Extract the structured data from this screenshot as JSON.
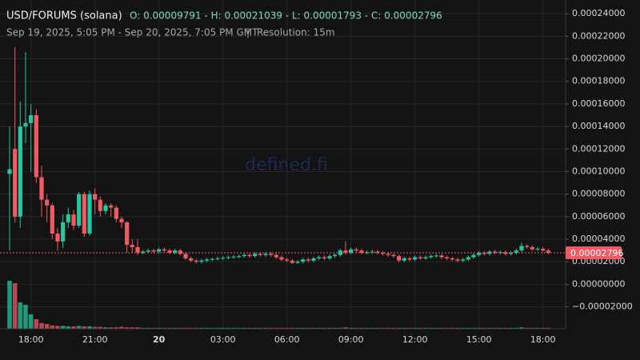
{
  "chart_data": {
    "type": "candlestick",
    "title": "USD/FORUMS (solana)",
    "subtitle": "O: 0.00009791 - H: 0.00021039 - L: 0.00001793 - C: 0.00002796",
    "range_label": "Sep 19, 2025, 5:05 PM - Sep 20, 2025, 7:05 PM GMT",
    "separator": "|",
    "resolution_label": "Resolution: 15m",
    "watermark": "defined.fi",
    "close_label": "0.00002796",
    "up_color": "#26c6a0",
    "down_color": "#f05a64",
    "grid": true,
    "ylim": [
      -3.95e-05,
      0.0002522
    ],
    "yticks": [
      {
        "value": -2e-05,
        "label": "−0.00002000"
      },
      {
        "value": 0,
        "label": "0.00000000"
      },
      {
        "value": 2e-05,
        "label": "0.00002000"
      },
      {
        "value": 4e-05,
        "label": "0.00004000"
      },
      {
        "value": 6e-05,
        "label": "0.00006000"
      },
      {
        "value": 8e-05,
        "label": "0.00008000"
      },
      {
        "value": 0.0001,
        "label": "0.00010000"
      },
      {
        "value": 0.00012,
        "label": "0.00012000"
      },
      {
        "value": 0.00014,
        "label": "0.00014000"
      },
      {
        "value": 0.00016,
        "label": "0.00016000"
      },
      {
        "value": 0.00018,
        "label": "0.00018000"
      },
      {
        "value": 0.0002,
        "label": "0.00020000"
      },
      {
        "value": 0.00022,
        "label": "0.00022000"
      },
      {
        "value": 0.00024,
        "label": "0.00024000"
      }
    ],
    "xticks": [
      "18:00",
      "21:00",
      "20",
      "03:00",
      "06:00",
      "09:00",
      "12:00",
      "15:00",
      "18:00"
    ],
    "open": [
      9.791e-05,
      0.00012,
      6e-05,
      0.00014,
      0.000143,
      0.00015,
      9.5e-05,
      7.5e-05,
      7e-05,
      4.5e-05,
      3.8e-05,
      5.5e-05,
      6.2e-05,
      5.2e-05,
      8e-05,
      4.5e-05,
      8e-05,
      7.5e-05,
      6.5e-05,
      7e-05,
      6.8e-05,
      5.8e-05,
      5.5e-05,
      3.5e-05,
      3.3e-05,
      2.8e-05,
      2.9e-05,
      3e-05,
      2.9e-05,
      3.1e-05,
      3e-05,
      2.8e-05,
      3e-05,
      2.7e-05,
      2.3e-05,
      2.1e-05,
      2e-05,
      2.1e-05,
      2.2e-05,
      2.25e-05,
      2.3e-05,
      2.35e-05,
      2.4e-05,
      2.45e-05,
      2.5e-05,
      2.6e-05,
      2.5e-05,
      2.7e-05,
      2.6e-05,
      2.7e-05,
      2.6e-05,
      2.4e-05,
      2.2e-05,
      2.1e-05,
      1.9e-05,
      2e-05,
      2.2e-05,
      2.1e-05,
      2.3e-05,
      2.4e-05,
      2.3e-05,
      2.5e-05,
      2.6e-05,
      3e-05,
      2.8e-05,
      3.1e-05,
      3e-05,
      2.8e-05,
      2.85e-05,
      2.9e-05,
      2.8e-05,
      2.7e-05,
      2.6e-05,
      2.5e-05,
      2.1e-05,
      2.3e-05,
      2.2e-05,
      2.4e-05,
      2.3e-05,
      2.4e-05,
      2.5e-05,
      2.55e-05,
      2.4e-05,
      2.3e-05,
      2.2e-05,
      2.1e-05,
      2.2e-05,
      2.4e-05,
      2.6e-05,
      2.8e-05,
      2.7e-05,
      2.9e-05,
      2.8e-05,
      2.85e-05,
      2.7e-05,
      2.8e-05,
      3e-05,
      3.4e-05,
      3.3e-05,
      3.1e-05,
      3.15e-05,
      3e-05
    ],
    "high": [
      0.00014,
      0.00021039,
      0.000162,
      0.000206,
      0.00016,
      0.000155,
      0.000105,
      8e-05,
      7.2e-05,
      5e-05,
      6.2e-05,
      6.8e-05,
      6.6e-05,
      8.2e-05,
      8.2e-05,
      8.3e-05,
      8.5e-05,
      7.8e-05,
      7.2e-05,
      7.2e-05,
      7e-05,
      6e-05,
      5.6e-05,
      4e-05,
      4e-05,
      3.05e-05,
      3.15e-05,
      3.15e-05,
      3.25e-05,
      3.25e-05,
      3.15e-05,
      3.15e-05,
      3.15e-05,
      2.85e-05,
      2.45e-05,
      2.25e-05,
      2.25e-05,
      2.35e-05,
      2.35e-05,
      2.45e-05,
      2.5e-05,
      2.55e-05,
      2.6e-05,
      2.65e-05,
      2.75e-05,
      2.75e-05,
      2.85e-05,
      2.85e-05,
      2.85e-05,
      2.85e-05,
      2.75e-05,
      2.55e-05,
      2.35e-05,
      2.25e-05,
      2.15e-05,
      2.35e-05,
      2.35e-05,
      2.45e-05,
      2.55e-05,
      2.55e-05,
      2.65e-05,
      2.75e-05,
      3.15e-05,
      3.8e-05,
      3.25e-05,
      3.25e-05,
      3.15e-05,
      3e-05,
      3.05e-05,
      3.05e-05,
      2.95e-05,
      2.85e-05,
      2.75e-05,
      2.65e-05,
      2.45e-05,
      2.45e-05,
      2.55e-05,
      2.55e-05,
      2.55e-05,
      2.65e-05,
      2.7e-05,
      2.7e-05,
      2.55e-05,
      2.45e-05,
      2.35e-05,
      2.35e-05,
      2.55e-05,
      2.75e-05,
      2.95e-05,
      2.95e-05,
      3.05e-05,
      3.05e-05,
      3e-05,
      3e-05,
      2.95e-05,
      3.15e-05,
      3.7e-05,
      3.55e-05,
      3.45e-05,
      3.3e-05,
      3.3e-05,
      3.15e-05
    ],
    "low": [
      3e-05,
      5.5e-05,
      5e-05,
      0.000125,
      0.0001,
      9e-05,
      6e-05,
      5.5e-05,
      4e-05,
      3e-05,
      3.2e-05,
      5e-05,
      4.8e-05,
      5e-05,
      4.2e-05,
      4.3e-05,
      6.2e-05,
      6e-05,
      6.2e-05,
      6e-05,
      5.5e-05,
      5e-05,
      2.8e-05,
      2.8e-05,
      2.6e-05,
      2.65e-05,
      2.75e-05,
      2.75e-05,
      2.75e-05,
      2.85e-05,
      2.65e-05,
      2.65e-05,
      2.55e-05,
      2.15e-05,
      1.95e-05,
      1.85e-05,
      1.85e-05,
      1.95e-05,
      2.05e-05,
      2.1e-05,
      2.15e-05,
      2.2e-05,
      2.25e-05,
      2.3e-05,
      2.35e-05,
      2.35e-05,
      2.35e-05,
      2.45e-05,
      2.45e-05,
      2.45e-05,
      2.25e-05,
      2.05e-05,
      1.95e-05,
      1.793e-05,
      1.8e-05,
      1.85e-05,
      1.95e-05,
      1.95e-05,
      2.15e-05,
      2.15e-05,
      2.15e-05,
      2.35e-05,
      2.45e-05,
      2.65e-05,
      2.65e-05,
      2.85e-05,
      2.65e-05,
      2.65e-05,
      2.7e-05,
      2.65e-05,
      2.55e-05,
      2.45e-05,
      2.35e-05,
      1.95e-05,
      1.95e-05,
      2.05e-05,
      2.05e-05,
      2.15e-05,
      2.15e-05,
      2.25e-05,
      2.35e-05,
      2.25e-05,
      2.15e-05,
      2.05e-05,
      1.95e-05,
      1.95e-05,
      2.05e-05,
      2.25e-05,
      2.45e-05,
      2.55e-05,
      2.55e-05,
      2.65e-05,
      2.65e-05,
      2.55e-05,
      2.55e-05,
      2.65e-05,
      2.85e-05,
      3.15e-05,
      2.95e-05,
      2.95e-05,
      2.85e-05,
      2.65e-05
    ],
    "close": [
      0.000102,
      6e-05,
      0.00014,
      0.000143,
      0.00015,
      9.5e-05,
      7.5e-05,
      7e-05,
      4.5e-05,
      3.8e-05,
      5.5e-05,
      6.2e-05,
      5.2e-05,
      8e-05,
      4.5e-05,
      8e-05,
      7.5e-05,
      6.5e-05,
      7e-05,
      6.8e-05,
      5.8e-05,
      5.5e-05,
      3.5e-05,
      3.3e-05,
      2.8e-05,
      2.9e-05,
      3e-05,
      2.9e-05,
      3.1e-05,
      3e-05,
      2.8e-05,
      3e-05,
      2.7e-05,
      2.3e-05,
      2.1e-05,
      2e-05,
      2.1e-05,
      2.2e-05,
      2.25e-05,
      2.3e-05,
      2.35e-05,
      2.4e-05,
      2.45e-05,
      2.5e-05,
      2.6e-05,
      2.5e-05,
      2.7e-05,
      2.6e-05,
      2.7e-05,
      2.6e-05,
      2.4e-05,
      2.2e-05,
      2.1e-05,
      1.9e-05,
      2e-05,
      2.2e-05,
      2.1e-05,
      2.3e-05,
      2.4e-05,
      2.3e-05,
      2.5e-05,
      2.6e-05,
      3e-05,
      2.8e-05,
      3.1e-05,
      3e-05,
      2.8e-05,
      2.85e-05,
      2.9e-05,
      2.8e-05,
      2.7e-05,
      2.6e-05,
      2.5e-05,
      2.1e-05,
      2.3e-05,
      2.2e-05,
      2.4e-05,
      2.3e-05,
      2.4e-05,
      2.5e-05,
      2.55e-05,
      2.4e-05,
      2.3e-05,
      2.2e-05,
      2.1e-05,
      2.2e-05,
      2.4e-05,
      2.6e-05,
      2.8e-05,
      2.7e-05,
      2.9e-05,
      2.8e-05,
      2.85e-05,
      2.7e-05,
      2.8e-05,
      3e-05,
      3.4e-05,
      3.3e-05,
      3.1e-05,
      3.15e-05,
      3e-05,
      2.796e-05
    ],
    "volume": [
      100,
      95,
      55,
      50,
      30,
      20,
      12,
      10,
      7,
      6,
      6,
      5,
      5,
      6,
      5,
      5,
      4,
      4,
      3,
      3,
      3,
      4,
      3,
      3,
      3,
      2,
      2,
      2,
      2,
      2,
      2,
      2,
      2,
      2,
      2,
      2,
      2,
      2,
      2,
      2,
      2,
      2,
      2,
      2,
      2,
      2,
      2,
      2,
      2,
      2,
      2,
      2,
      2,
      2,
      2,
      2,
      2,
      2,
      2,
      2,
      2,
      2,
      2,
      3,
      2,
      2,
      2,
      2,
      2,
      2,
      2,
      2,
      2,
      2,
      2,
      2,
      2,
      2,
      2,
      2,
      2,
      2,
      2,
      2,
      2,
      2,
      2,
      2,
      2,
      2,
      2,
      2,
      2,
      2,
      2,
      2,
      3,
      2,
      2,
      2,
      2,
      2
    ]
  }
}
